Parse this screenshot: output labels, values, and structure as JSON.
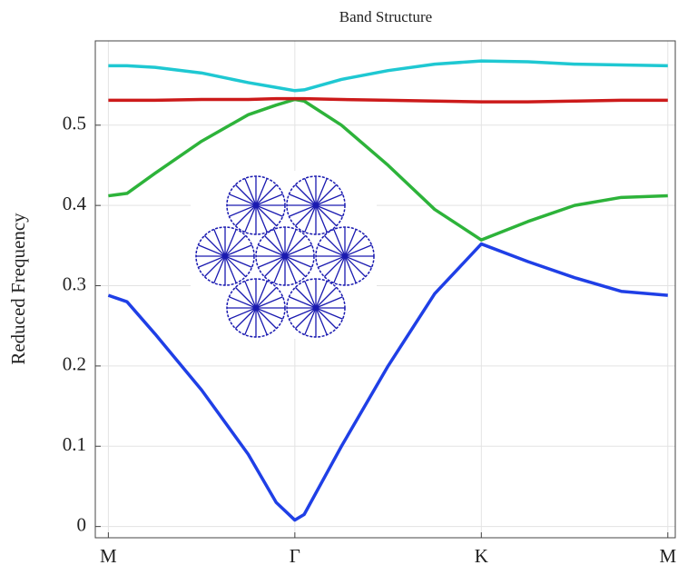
{
  "chart_data": {
    "type": "line",
    "title": "Band Structure",
    "y_label": "Reduced Frequency",
    "x": [
      0,
      0.1,
      0.25,
      0.5,
      0.75,
      0.9,
      1,
      1.05,
      1.25,
      1.5,
      1.75,
      2,
      2.25,
      2.5,
      2.75,
      3
    ],
    "xlim": [
      -0.07,
      3.04
    ],
    "xticks": [
      {
        "value": 0,
        "label": "M"
      },
      {
        "value": 1,
        "label": "Γ"
      },
      {
        "value": 2,
        "label": "K"
      },
      {
        "value": 3,
        "label": "M"
      }
    ],
    "ylim": [
      -0.014,
      0.605
    ],
    "yticks": [
      0,
      0.1,
      0.2,
      0.3,
      0.4,
      0.5
    ],
    "grid": true,
    "series": [
      {
        "color": "#1f3fe6",
        "values": [
          0.288,
          0.28,
          0.24,
          0.17,
          0.09,
          0.03,
          0.008,
          0.015,
          0.1,
          0.2,
          0.29,
          0.352,
          0.33,
          0.31,
          0.293,
          0.288
        ]
      },
      {
        "color": "#2db33a",
        "values": [
          0.412,
          0.415,
          0.44,
          0.48,
          0.513,
          0.525,
          0.532,
          0.53,
          0.5,
          0.45,
          0.395,
          0.357,
          0.38,
          0.4,
          0.41,
          0.412
        ]
      },
      {
        "color": "#cc1a1a",
        "values": [
          0.531,
          0.531,
          0.531,
          0.532,
          0.532,
          0.533,
          0.533,
          0.533,
          0.532,
          0.531,
          0.53,
          0.529,
          0.529,
          0.53,
          0.531,
          0.531
        ]
      },
      {
        "color": "#1fc8d2",
        "values": [
          0.574,
          0.574,
          0.572,
          0.565,
          0.553,
          0.547,
          0.543,
          0.544,
          0.557,
          0.568,
          0.576,
          0.58,
          0.579,
          0.576,
          0.575,
          0.574
        ]
      }
    ]
  }
}
